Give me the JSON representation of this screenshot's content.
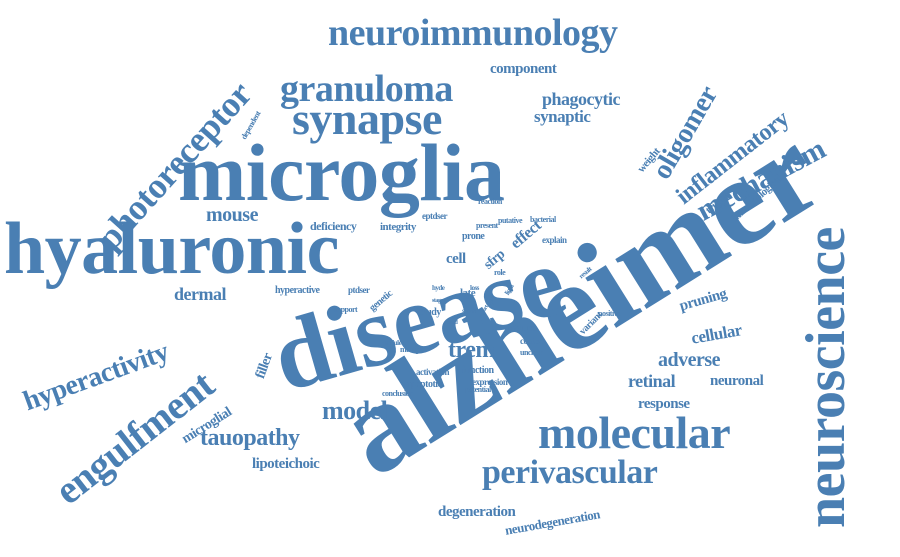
{
  "color": "#4a7fb3",
  "words": [
    "alzheimer",
    "disease",
    "microglia",
    "hyaluronic",
    "neuroscience",
    "molecular",
    "synapse",
    "granuloma",
    "engulfment",
    "photoreceptor",
    "neuroimmunology",
    "mechanism",
    "oligomer",
    "perivascular",
    "inflammatory",
    "hyperactivity",
    "tauopathy",
    "model",
    "trem",
    "mouse",
    "dermal",
    "adverse",
    "cellular",
    "retinal",
    "neuronal",
    "response",
    "pruning",
    "phagocytic",
    "synaptic",
    "component",
    "microglial",
    "lipoteichoic",
    "degeneration",
    "neurodegeneration",
    "filler",
    "deficiency",
    "integrity",
    "eptdser",
    "cell",
    "sfrp",
    "effect",
    "prone",
    "hyperactive",
    "ptdser",
    "genetic",
    "support",
    "study",
    "late",
    "induce",
    "context",
    "function",
    "expression",
    "activation",
    "apoptotic",
    "conclusion",
    "potential",
    "multiple",
    "nodule",
    "unclear",
    "immunological",
    "trigger",
    "weight",
    "dependent",
    "reaction",
    "present",
    "putative",
    "bacterial",
    "explain",
    "role",
    "loss",
    "case",
    "hyde",
    "stage",
    "signal",
    "report",
    "variant",
    "positive",
    "result",
    "light",
    "spine",
    "mind"
  ]
}
